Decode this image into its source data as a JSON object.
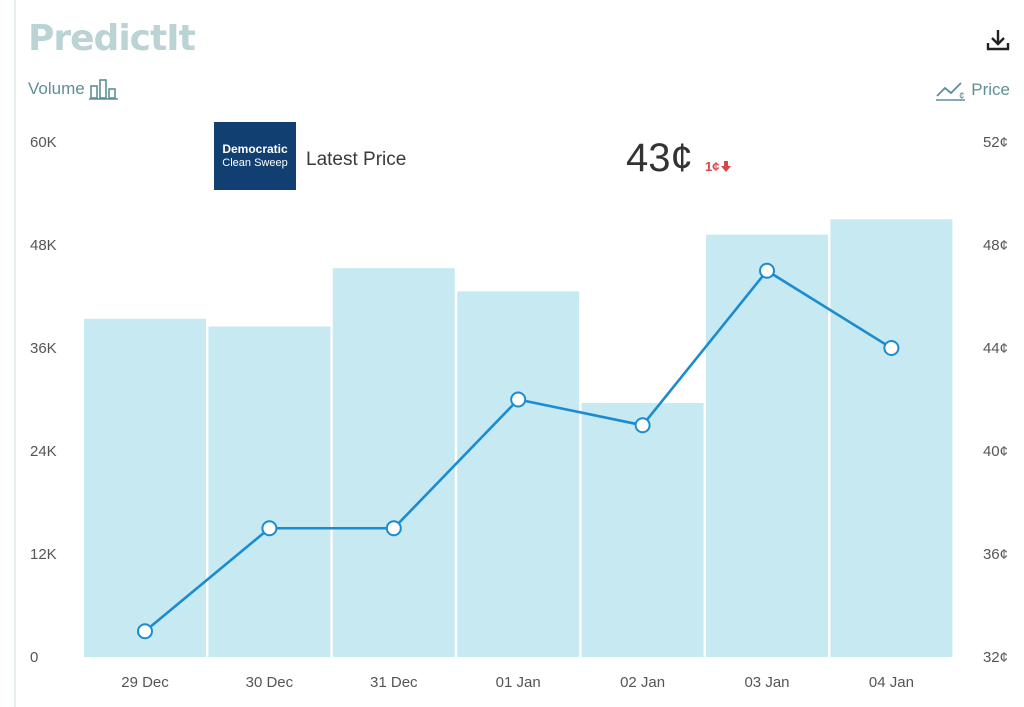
{
  "header": {
    "logo_text": "PredictIt",
    "download_icon": "download-icon"
  },
  "axes": {
    "left_title": "Volume",
    "right_title": "Price",
    "left_icon": "bar-chart-icon",
    "right_icon": "line-chart-icon"
  },
  "market": {
    "badge_line1": "Democratic",
    "badge_line2": "Clean Sweep",
    "latest_label": "Latest Price",
    "latest_price": "43¢",
    "change": "1¢",
    "change_direction": "down",
    "change_color": "#d9454a"
  },
  "colors": {
    "bar": "#c7e9f2",
    "line": "#1a8ccf",
    "marker_fill": "#ffffff"
  },
  "chart_data": {
    "type": "bar+line",
    "categories": [
      "29 Dec",
      "30 Dec",
      "31 Dec",
      "01 Jan",
      "02 Jan",
      "03 Jan",
      "04 Jan"
    ],
    "series": [
      {
        "name": "Volume",
        "type": "bar",
        "axis": "left",
        "values": [
          39400,
          38500,
          45300,
          42600,
          29600,
          49200,
          51000
        ]
      },
      {
        "name": "Price",
        "type": "line",
        "axis": "right",
        "values": [
          33,
          37,
          37,
          42,
          41,
          47,
          44
        ]
      }
    ],
    "left_axis": {
      "ticks": [
        "0",
        "12K",
        "24K",
        "36K",
        "48K",
        "60K"
      ],
      "ylim": [
        0,
        60000
      ]
    },
    "right_axis": {
      "ticks": [
        "32¢",
        "36¢",
        "40¢",
        "44¢",
        "48¢",
        "52¢"
      ],
      "ylim": [
        32,
        52
      ]
    },
    "grid": false,
    "legend": "none"
  }
}
